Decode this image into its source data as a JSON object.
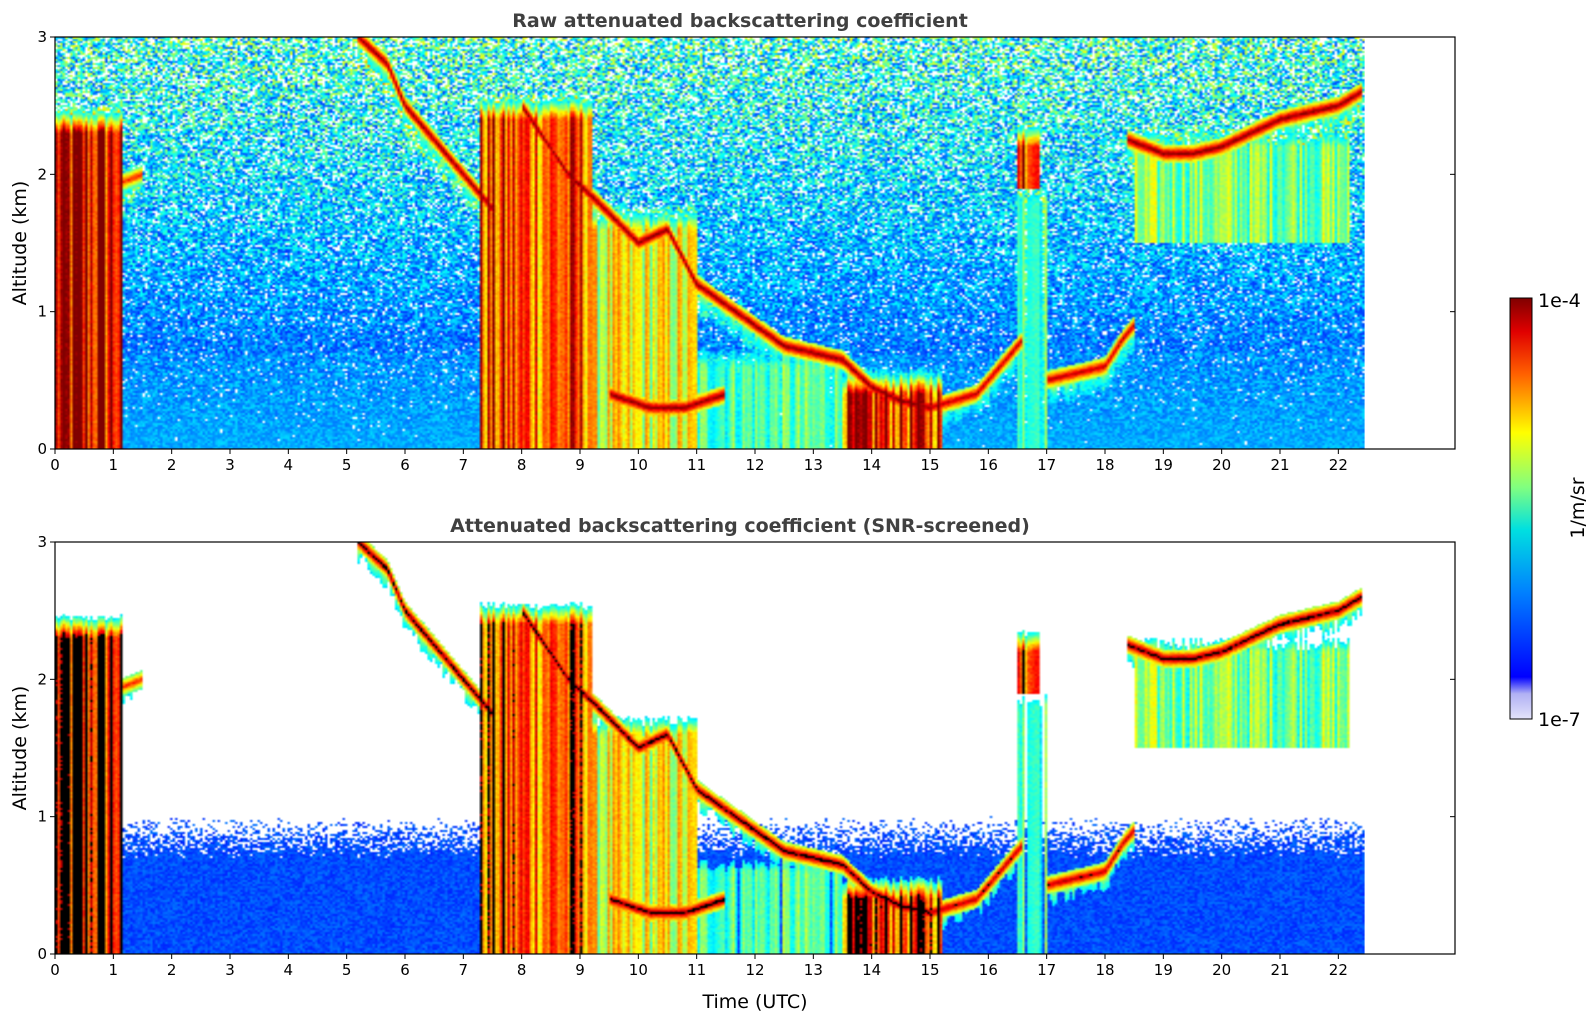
{
  "chart_data": [
    {
      "type": "heatmap",
      "title": "Raw attenuated backscattering coefficient",
      "xlabel": "",
      "ylabel": "Altitude (km)",
      "xlim": [
        0,
        24
      ],
      "ylim": [
        0,
        3
      ],
      "xticks": [
        "0",
        "1",
        "2",
        "3",
        "4",
        "5",
        "6",
        "7",
        "8",
        "9",
        "10",
        "11",
        "12",
        "13",
        "14",
        "15",
        "16",
        "17",
        "18",
        "19",
        "20",
        "21",
        "22"
      ],
      "yticks": [
        "0",
        "1",
        "2",
        "3"
      ],
      "data_time_range": [
        0,
        22.45
      ],
      "screened": false,
      "features": [
        {
          "kind": "cloud",
          "t_start": 0.0,
          "t_end": 1.15,
          "alt_bottom": 0.0,
          "alt_top": 2.5,
          "intensity": 0.9
        },
        {
          "kind": "layer",
          "points": [
            [
              0.9,
              1.9
            ],
            [
              1.5,
              2.0
            ]
          ],
          "intensity": 0.85
        },
        {
          "kind": "layer",
          "points": [
            [
              5.2,
              3.0
            ],
            [
              5.7,
              2.8
            ],
            [
              6.0,
              2.5
            ],
            [
              6.5,
              2.25
            ],
            [
              7.0,
              2.0
            ],
            [
              7.5,
              1.75
            ]
          ],
          "intensity": 1.0
        },
        {
          "kind": "cloud",
          "t_start": 7.3,
          "t_end": 9.2,
          "alt_bottom": 0.0,
          "alt_top": 2.6,
          "intensity": 0.8
        },
        {
          "kind": "cloud",
          "t_start": 9.2,
          "t_end": 11.0,
          "alt_bottom": 0.0,
          "alt_top": 1.8,
          "intensity": 0.6
        },
        {
          "kind": "layer",
          "points": [
            [
              8.0,
              2.5
            ],
            [
              8.8,
              2.0
            ],
            [
              9.3,
              1.8
            ],
            [
              10.0,
              1.5
            ],
            [
              10.5,
              1.6
            ],
            [
              11.0,
              1.2
            ],
            [
              12.0,
              0.9
            ],
            [
              12.5,
              0.75
            ],
            [
              13.5,
              0.65
            ],
            [
              14.0,
              0.45
            ],
            [
              14.5,
              0.35
            ],
            [
              15.0,
              0.3
            ]
          ],
          "intensity": 1.0
        },
        {
          "kind": "layer",
          "points": [
            [
              9.5,
              0.4
            ],
            [
              10.2,
              0.3
            ],
            [
              10.8,
              0.3
            ],
            [
              11.5,
              0.4
            ]
          ],
          "intensity": 1.0
        },
        {
          "kind": "cloud",
          "t_start": 11.0,
          "t_end": 13.5,
          "alt_bottom": 0.0,
          "alt_top": 0.8,
          "intensity": 0.45
        },
        {
          "kind": "cloud",
          "t_start": 13.5,
          "t_end": 15.2,
          "alt_bottom": 0.0,
          "alt_top": 0.6,
          "intensity": 0.85
        },
        {
          "kind": "layer",
          "points": [
            [
              15.0,
              0.3
            ],
            [
              15.8,
              0.4
            ],
            [
              16.2,
              0.6
            ],
            [
              16.6,
              0.8
            ]
          ],
          "intensity": 0.95
        },
        {
          "kind": "cloud",
          "t_start": 16.5,
          "t_end": 16.9,
          "alt_bottom": 1.9,
          "alt_top": 2.4,
          "intensity": 0.9
        },
        {
          "kind": "cloud",
          "t_start": 16.5,
          "t_end": 17.0,
          "alt_bottom": 0.0,
          "alt_top": 2.0,
          "intensity": 0.45
        },
        {
          "kind": "layer",
          "points": [
            [
              17.0,
              0.5
            ],
            [
              17.5,
              0.55
            ],
            [
              18.0,
              0.6
            ],
            [
              18.3,
              0.8
            ],
            [
              18.5,
              0.9
            ]
          ],
          "intensity": 0.95
        },
        {
          "kind": "layer",
          "points": [
            [
              18.4,
              2.25
            ],
            [
              19.0,
              2.15
            ],
            [
              19.5,
              2.15
            ],
            [
              20.0,
              2.2
            ],
            [
              20.5,
              2.3
            ],
            [
              21.0,
              2.4
            ],
            [
              21.5,
              2.45
            ],
            [
              22.0,
              2.5
            ],
            [
              22.4,
              2.6
            ]
          ],
          "intensity": 1.0
        },
        {
          "kind": "cloud",
          "t_start": 18.5,
          "t_end": 22.2,
          "alt_bottom": 1.5,
          "alt_top": 2.4,
          "intensity": 0.5
        },
        {
          "kind": "boundary_layer",
          "t_start": 0.0,
          "t_end": 22.45,
          "alt_top": 0.7,
          "intensity": 0.2
        }
      ]
    },
    {
      "type": "heatmap",
      "title": "Attenuated backscattering coefficient (SNR-screened)",
      "xlabel": "Time (UTC)",
      "ylabel": "Altitude (km)",
      "xlim": [
        0,
        24
      ],
      "ylim": [
        0,
        3
      ],
      "xticks": [
        "0",
        "1",
        "2",
        "3",
        "4",
        "5",
        "6",
        "7",
        "8",
        "9",
        "10",
        "11",
        "12",
        "13",
        "14",
        "15",
        "16",
        "17",
        "18",
        "19",
        "20",
        "21",
        "22"
      ],
      "yticks": [
        "0",
        "1",
        "2",
        "3"
      ],
      "data_time_range": [
        0,
        22.45
      ],
      "screened": true,
      "features": "same as raw panel with low-SNR pixels removed"
    }
  ],
  "colorbar": {
    "label": "1/m/sr",
    "min_label": "1e-7",
    "max_label": "1e-4",
    "colormap": "jet"
  }
}
